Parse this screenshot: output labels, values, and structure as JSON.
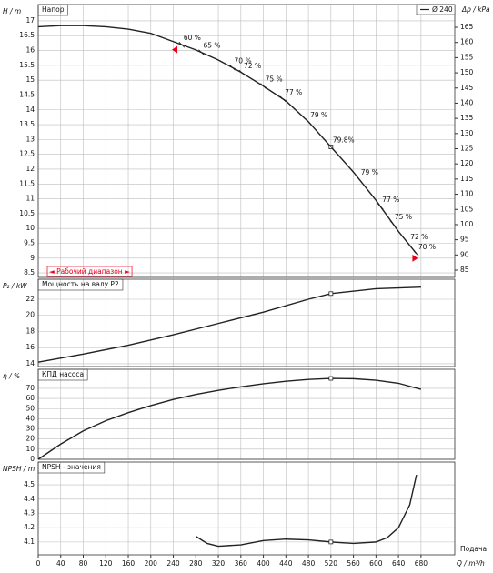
{
  "chart_data": [
    {
      "type": "line",
      "title": "Напор",
      "ylabel": "H / m",
      "y2label": "Δp / kPa",
      "x": [
        0,
        40,
        80,
        120,
        160,
        200,
        240,
        280,
        320,
        360,
        400,
        440,
        480,
        520,
        560,
        600,
        640,
        672
      ],
      "series": [
        {
          "name": "Ø 240",
          "color": "#222222",
          "values": [
            16.8,
            16.84,
            16.84,
            16.8,
            16.72,
            16.58,
            16.3,
            16.02,
            15.68,
            15.27,
            14.8,
            14.3,
            13.6,
            12.75,
            11.9,
            10.95,
            9.9,
            9.15
          ]
        }
      ],
      "ylim": [
        8.35,
        17.55
      ],
      "yticks": [
        8.5,
        9,
        9.5,
        10,
        10.5,
        11,
        11.5,
        12,
        12.5,
        13,
        13.5,
        14,
        14.5,
        15,
        15.5,
        16,
        16.5,
        17
      ],
      "y2lim": [
        82.6,
        172.5
      ],
      "y2ticks": [
        85,
        90,
        95,
        100,
        105,
        110,
        115,
        120,
        125,
        130,
        135,
        140,
        145,
        150,
        155,
        160,
        165
      ],
      "marker_x": 520,
      "annotations": [
        {
          "x": 255,
          "label": "60 %"
        },
        {
          "x": 290,
          "label": "65 %"
        },
        {
          "x": 345,
          "label": "70 %"
        },
        {
          "x": 362,
          "label": "72 %"
        },
        {
          "x": 400,
          "label": "75 %"
        },
        {
          "x": 435,
          "label": "77 %"
        },
        {
          "x": 480,
          "label": "79 %"
        },
        {
          "x": 520,
          "label": "79.8%"
        },
        {
          "x": 570,
          "label": "79 %"
        },
        {
          "x": 608,
          "label": "77 %"
        },
        {
          "x": 630,
          "label": "75 %"
        },
        {
          "x": 658,
          "label": "72 %"
        },
        {
          "x": 672,
          "label": "70 %"
        }
      ],
      "operating_range": {
        "label": "◄ Рабочий диапазон ►",
        "x": [
          244,
          668
        ],
        "color": "#e8001c"
      }
    },
    {
      "type": "line",
      "title": "Мощность на валу P2",
      "ylabel": "P₂ / kW",
      "x": [
        0,
        80,
        160,
        240,
        320,
        400,
        480,
        520,
        600,
        680
      ],
      "series": [
        {
          "color": "#222222",
          "values": [
            14.2,
            15.2,
            16.3,
            17.6,
            19.0,
            20.4,
            22.0,
            22.7,
            23.3,
            23.5
          ]
        }
      ],
      "ylim": [
        13.66,
        24.48
      ],
      "yticks": [
        14,
        16,
        18,
        20,
        22
      ],
      "marker_x": 520
    },
    {
      "type": "line",
      "title": "КПД насоса",
      "ylabel": "η / %",
      "x": [
        0,
        40,
        80,
        120,
        160,
        200,
        240,
        280,
        320,
        360,
        400,
        440,
        480,
        520,
        560,
        600,
        640,
        680
      ],
      "series": [
        {
          "color": "#222222",
          "values": [
            0,
            15,
            28,
            38,
            46,
            53,
            59,
            64,
            68,
            71.5,
            74.5,
            77,
            78.8,
            79.8,
            79.5,
            78,
            75,
            69
          ]
        }
      ],
      "ylim": [
        0,
        88.8
      ],
      "yticks": [
        0,
        10,
        20,
        30,
        40,
        50,
        60,
        70
      ],
      "marker_x": 520
    },
    {
      "type": "line",
      "title": "NPSH - значения",
      "ylabel": "NPSH / m",
      "xlabel": "Q / m³/h",
      "xcaption": "Подача",
      "x": [
        280,
        300,
        320,
        360,
        400,
        440,
        480,
        520,
        560,
        600,
        620,
        640,
        660,
        672
      ],
      "series": [
        {
          "color": "#222222",
          "values": [
            4.14,
            4.09,
            4.07,
            4.08,
            4.11,
            4.12,
            4.115,
            4.1,
            4.09,
            4.1,
            4.13,
            4.2,
            4.36,
            4.57
          ]
        }
      ],
      "ylim": [
        4.01,
        4.66
      ],
      "yticks": [
        4.1,
        4.2,
        4.3,
        4.4,
        4.5
      ],
      "marker_x": 520,
      "xlim": [
        0,
        740
      ],
      "xticks": [
        0,
        40,
        80,
        120,
        160,
        200,
        240,
        280,
        320,
        360,
        400,
        440,
        480,
        520,
        560,
        600,
        640,
        680
      ]
    }
  ]
}
